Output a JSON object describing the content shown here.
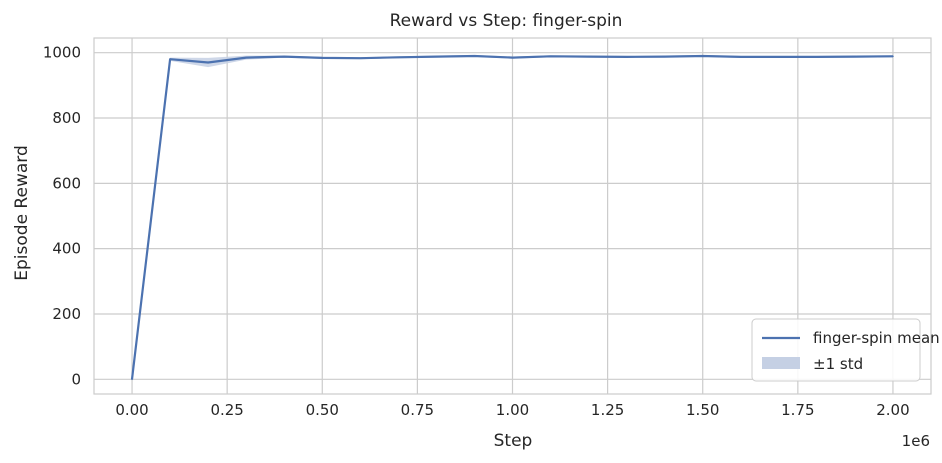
{
  "chart_data": {
    "type": "line",
    "title": "Reward vs Step: finger-spin",
    "xlabel": "Step",
    "ylabel": "Episode Reward",
    "x_offset_label": "1e6",
    "xlim": [
      -0.1,
      2.1
    ],
    "ylim": [
      -45,
      1045
    ],
    "x_ticks": [
      0.0,
      0.25,
      0.5,
      0.75,
      1.0,
      1.25,
      1.5,
      1.75,
      2.0
    ],
    "x_tick_labels": [
      "0.00",
      "0.25",
      "0.50",
      "0.75",
      "1.00",
      "1.25",
      "1.50",
      "1.75",
      "2.00"
    ],
    "y_ticks": [
      0,
      200,
      400,
      600,
      800,
      1000
    ],
    "y_tick_labels": [
      "0",
      "200",
      "400",
      "600",
      "800",
      "1000"
    ],
    "grid": true,
    "legend_position": "bottom-right",
    "colors": {
      "line": "#4c72b0",
      "band": "#c5d0e4",
      "grid": "#cccccc",
      "frame": "#cccccc"
    },
    "series": [
      {
        "name": "finger-spin mean",
        "x": [
          0.0,
          0.1,
          0.2,
          0.3,
          0.4,
          0.5,
          0.6,
          0.7,
          0.8,
          0.9,
          1.0,
          1.1,
          1.2,
          1.3,
          1.4,
          1.5,
          1.6,
          1.7,
          1.8,
          1.9,
          2.0
        ],
        "y": [
          0,
          980,
          970,
          985,
          988,
          984,
          983,
          986,
          988,
          990,
          985,
          989,
          988,
          987,
          988,
          990,
          987,
          987,
          987,
          988,
          989
        ],
        "std": [
          0,
          5,
          14,
          6,
          3,
          3,
          3,
          3,
          3,
          3,
          3,
          3,
          3,
          3,
          3,
          3,
          3,
          3,
          3,
          3,
          3
        ]
      }
    ],
    "band_label": "±1 std"
  }
}
